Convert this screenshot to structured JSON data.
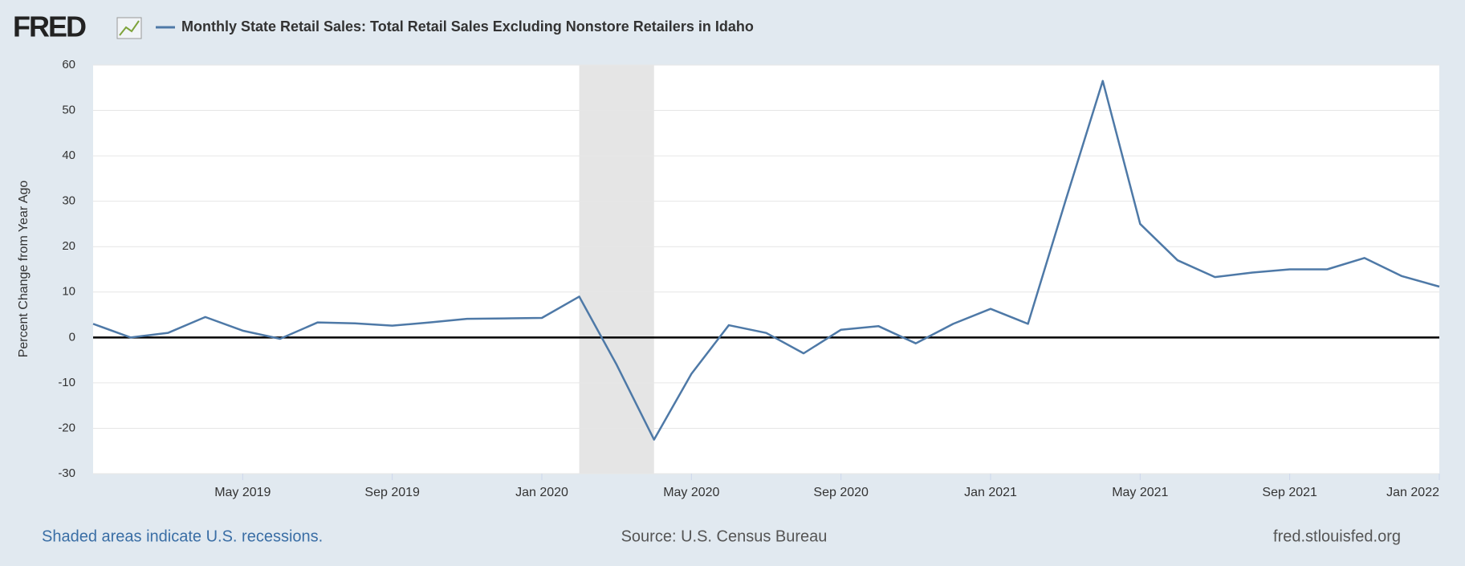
{
  "chart_data": {
    "type": "line",
    "logo": "FRED",
    "title": "Monthly State Retail Sales: Total Retail Sales Excluding Nonstore Retailers in Idaho",
    "y_label": "Percent Change from Year Ago",
    "x": [
      "2019-01",
      "2019-02",
      "2019-03",
      "2019-04",
      "2019-05",
      "2019-06",
      "2019-07",
      "2019-08",
      "2019-09",
      "2019-10",
      "2019-11",
      "2019-12",
      "2020-01",
      "2020-02",
      "2020-03",
      "2020-04",
      "2020-05",
      "2020-06",
      "2020-07",
      "2020-08",
      "2020-09",
      "2020-10",
      "2020-11",
      "2020-12",
      "2021-01",
      "2021-02",
      "2021-03",
      "2021-04",
      "2021-05",
      "2021-06",
      "2021-07",
      "2021-08",
      "2021-09",
      "2021-10",
      "2021-11",
      "2021-12",
      "2022-01"
    ],
    "series": [
      {
        "name": "Monthly State Retail Sales: Total Retail Sales Excluding Nonstore Retailers in Idaho",
        "color": "#4e79a7",
        "values": [
          3,
          0,
          1,
          4.5,
          1.5,
          -0.3,
          3.3,
          3.1,
          2.6,
          3.3,
          4.1,
          4.2,
          4.3,
          9,
          -6,
          -22.5,
          -8,
          2.7,
          1,
          -3.5,
          1.7,
          2.5,
          -1.3,
          3,
          6.3,
          3,
          30,
          56.5,
          25,
          17,
          13.3,
          14.3,
          15,
          15,
          17.5,
          13.5,
          11.2
        ]
      }
    ],
    "xlim": [
      "2019-01",
      "2022-01"
    ],
    "xticks": [
      {
        "value": "2019-05",
        "label": "May 2019"
      },
      {
        "value": "2019-09",
        "label": "Sep 2019"
      },
      {
        "value": "2020-01",
        "label": "Jan 2020"
      },
      {
        "value": "2020-05",
        "label": "May 2020"
      },
      {
        "value": "2020-09",
        "label": "Sep 2020"
      },
      {
        "value": "2021-01",
        "label": "Jan 2021"
      },
      {
        "value": "2021-05",
        "label": "May 2021"
      },
      {
        "value": "2021-09",
        "label": "Sep 2021"
      },
      {
        "value": "2022-01",
        "label": "Jan 2022"
      }
    ],
    "ylim": [
      -30,
      60
    ],
    "yticks": [
      -30,
      -20,
      -10,
      0,
      10,
      20,
      30,
      40,
      50,
      60
    ],
    "grid": true,
    "recessions": [
      [
        "2020-02",
        "2020-04"
      ]
    ],
    "recession_note": "Shaded areas indicate U.S. recessions.",
    "source": "Source: U.S. Census Bureau",
    "site": "fred.stlouisfed.org"
  }
}
